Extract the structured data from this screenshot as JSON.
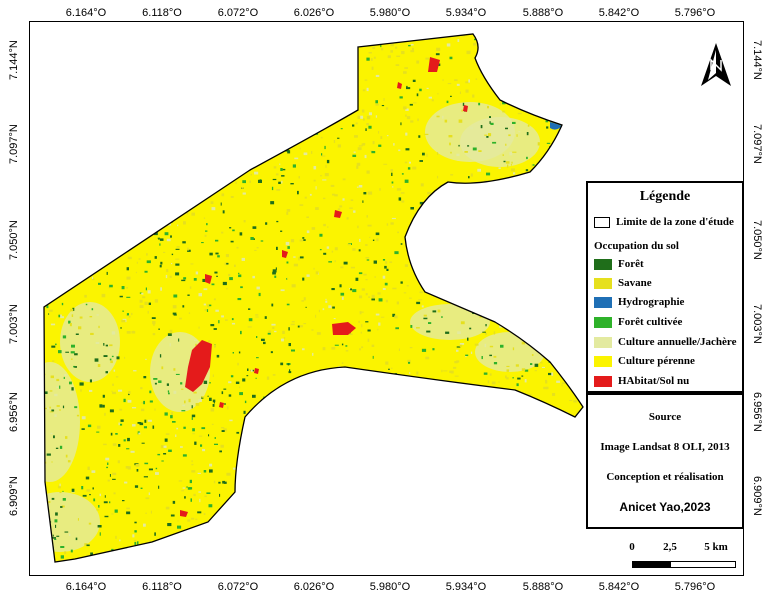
{
  "grid": {
    "longitude_labels": [
      "6.164°O",
      "6.118°O",
      "6.072°O",
      "6.026°O",
      "5.980°O",
      "5.934°O",
      "5.888°O",
      "5.842°O",
      "5.796°O"
    ],
    "latitude_labels": [
      "7.144°N",
      "7.097°N",
      "7.050°N",
      "7.003°N",
      "6.956°N",
      "6.909°N"
    ]
  },
  "north_arrow": {
    "icon": "north-arrow-icon"
  },
  "legend": {
    "title": "Légende",
    "boundary_label": "Limite de la zone d'étude",
    "section_title": "Occupation du sol",
    "classes": [
      {
        "label": "Forêt",
        "color": "#1f6e1a"
      },
      {
        "label": "Savane",
        "color": "#e6e01e"
      },
      {
        "label": "Hydrographie",
        "color": "#1f6fb5"
      },
      {
        "label": "Forêt cultivée",
        "color": "#2eb22a"
      },
      {
        "label": "Culture annuelle/Jachère",
        "color": "#e3eaa0"
      },
      {
        "label": "Culture pérenne",
        "color": "#fbf400"
      },
      {
        "label": "HAbitat/Sol nu",
        "color": "#e41b1b"
      }
    ]
  },
  "source": {
    "title": "Source",
    "image": "Image Landsat 8 OLI, 2013",
    "credit_title": "Conception et réalisation",
    "author": "Anicet Yao,2023"
  },
  "scale": {
    "labels": [
      "0",
      "2,5",
      "5 km"
    ]
  }
}
